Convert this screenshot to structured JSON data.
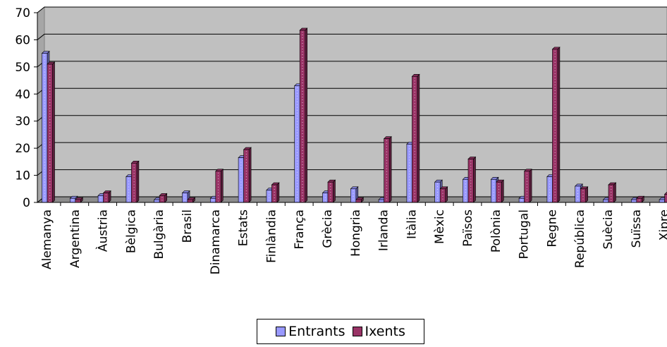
{
  "chart_data": {
    "type": "bar",
    "title": "",
    "xlabel": "",
    "ylabel": "",
    "ylim": [
      0,
      70
    ],
    "yticks": [
      0,
      10,
      20,
      30,
      40,
      50,
      60,
      70
    ],
    "grid": true,
    "legend_position": "bottom",
    "categories": [
      "Alemanya",
      "Argentina",
      "Àustria",
      "Bèlgica",
      "Bulgària",
      "Brasil",
      "Dinamarca",
      "Estats",
      "Finlàndia",
      "França",
      "Grècia",
      "Hongria",
      "Irlanda",
      "Itàlia",
      "Mèxic",
      "Països",
      "Polònia",
      "Portugal",
      "Regne",
      "República",
      "Suècia",
      "Suïssa",
      "Xipre"
    ],
    "series": [
      {
        "name": "Entrants",
        "color": "#9999ff",
        "values": [
          55,
          1.5,
          2.5,
          9.5,
          1,
          3.5,
          1.5,
          16.5,
          4.5,
          43,
          3.5,
          5,
          1,
          21.5,
          7.5,
          8.5,
          8.5,
          1.5,
          9.5,
          6,
          1,
          1,
          1
        ]
      },
      {
        "name": "Ixents",
        "color": "#993366",
        "values": [
          51,
          1,
          3.5,
          14.5,
          2.5,
          1,
          11.5,
          19.5,
          6.5,
          63.5,
          7.5,
          1,
          23.5,
          46.5,
          5,
          16,
          7.5,
          11.5,
          56.5,
          5,
          6.5,
          1.5,
          3
        ]
      }
    ]
  }
}
